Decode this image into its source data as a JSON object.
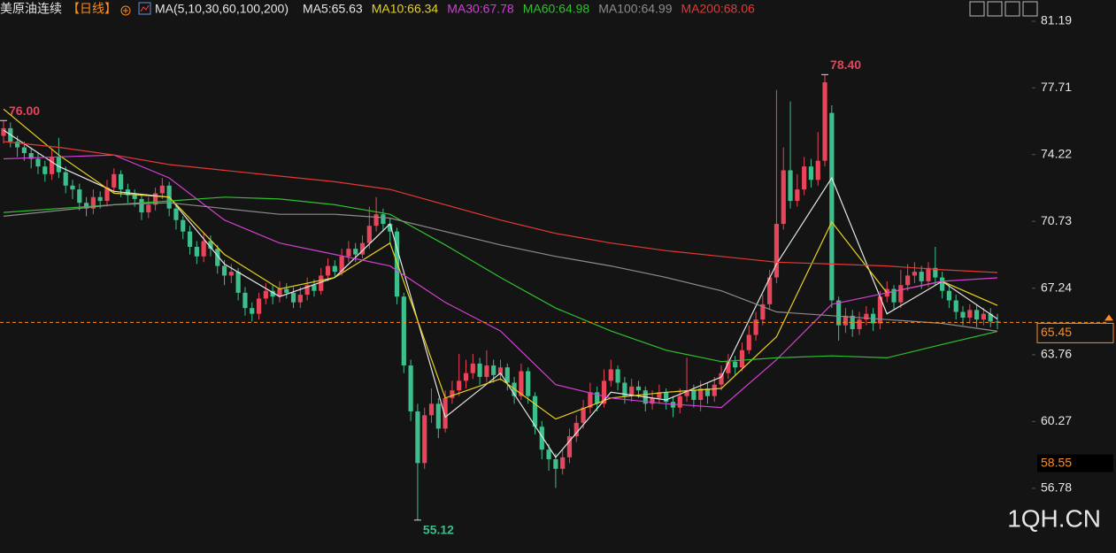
{
  "chart_data": {
    "type": "candlestick",
    "symbol": "美原油连续",
    "period": "【日线】",
    "indicator": "MA(5,10,30,60,100,200)",
    "watermark": "1QH.CN",
    "ylim": [
      53.4,
      82.3
    ],
    "yticks": [
      81.19,
      77.71,
      74.22,
      70.73,
      67.24,
      63.76,
      60.27,
      56.78
    ],
    "up_color": "#e8445a",
    "down_color": "#3cbf8c",
    "candles": {
      "open": [
        75.2,
        75.6,
        74.9,
        74.6,
        74.3,
        74.0,
        73.6,
        73.2,
        74.1,
        73.3,
        72.6,
        72.4,
        71.7,
        71.4,
        72.0,
        71.8,
        72.5,
        73.2,
        72.4,
        72.1,
        71.9,
        71.2,
        71.6,
        72.2,
        72.6,
        71.4,
        70.8,
        70.2,
        69.4,
        68.9,
        69.7,
        69.3,
        68.4,
        67.9,
        68.1,
        67.0,
        66.2,
        65.9,
        66.7,
        67.1,
        66.8,
        67.2,
        67.0,
        66.5,
        66.9,
        67.4,
        67.1,
        67.9,
        68.4,
        68.1,
        68.9,
        69.3,
        69.0,
        69.6,
        70.5,
        71.1,
        70.6,
        70.2,
        66.8,
        63.2,
        60.8,
        58.1,
        60.6,
        61.2,
        59.9,
        61.5,
        61.9,
        62.4,
        62.8,
        63.3,
        62.6,
        63.2,
        62.7,
        63.1,
        62.3,
        61.6,
        62.9,
        61.6,
        60.0,
        58.8,
        58.3,
        57.8,
        58.4,
        59.5,
        60.2,
        61.0,
        61.8,
        61.2,
        62.4,
        63.0,
        62.3,
        61.6,
        62.1,
        61.9,
        61.2,
        61.5,
        61.8,
        61.3,
        61.0,
        61.6,
        61.9,
        61.4,
        62.0,
        61.6,
        62.2,
        62.8,
        63.4,
        63.1,
        64.0,
        64.8,
        65.6,
        66.4,
        67.8,
        70.6,
        73.4,
        71.8,
        72.4,
        73.6,
        72.9,
        73.9,
        76.4,
        66.6,
        65.3,
        65.8,
        65.1,
        65.6,
        65.9,
        65.4,
        66.8,
        67.2,
        66.5,
        67.4,
        67.9,
        68.1,
        67.6,
        68.3,
        67.8,
        67.1,
        66.6,
        66.0,
        65.7,
        66.1,
        65.6,
        65.9,
        65.5
      ],
      "high": [
        76.0,
        75.9,
        75.2,
        74.9,
        74.6,
        74.3,
        73.9,
        74.5,
        75.1,
        73.6,
        72.9,
        72.7,
        72.0,
        72.4,
        72.3,
        72.9,
        73.5,
        73.4,
        72.7,
        72.4,
        72.1,
        72.0,
        72.5,
        73.0,
        72.8,
        71.6,
        71.0,
        70.5,
        69.7,
        70.1,
        70.0,
        69.5,
        68.7,
        68.5,
        68.3,
        67.3,
        66.5,
        67.0,
        67.5,
        67.4,
        67.6,
        67.5,
        67.3,
        67.3,
        67.8,
        67.7,
        68.3,
        68.8,
        68.7,
        69.3,
        69.7,
        69.6,
        70.0,
        71.5,
        72.0,
        71.4,
        70.9,
        70.4,
        67.0,
        63.5,
        61.2,
        61.0,
        62.0,
        61.5,
        61.9,
        62.4,
        63.8,
        63.5,
        63.8,
        63.6,
        64.0,
        63.5,
        63.5,
        63.3,
        62.6,
        63.3,
        63.1,
        61.8,
        60.3,
        59.1,
        58.6,
        58.8,
        59.9,
        60.6,
        61.4,
        62.3,
        62.1,
        63.0,
        63.5,
        63.2,
        62.6,
        62.5,
        62.4,
        62.1,
        61.9,
        62.2,
        62.0,
        61.6,
        62.0,
        63.6,
        62.2,
        62.4,
        62.3,
        62.6,
        63.2,
        63.8,
        63.7,
        64.4,
        65.3,
        66.0,
        66.9,
        68.2,
        77.6,
        74.6,
        77.0,
        73.2,
        74.1,
        74.0,
        75.4,
        78.4,
        76.8,
        66.8,
        66.2,
        66.1,
        66.0,
        66.3,
        66.2,
        67.1,
        67.6,
        67.4,
        68.2,
        68.5,
        68.6,
        68.4,
        68.6,
        69.4,
        68.1,
        67.4,
        66.9,
        66.3,
        66.4,
        66.4,
        66.2,
        66.2,
        65.9
      ],
      "low": [
        74.8,
        74.6,
        74.1,
        73.9,
        73.5,
        73.2,
        72.8,
        72.9,
        73.0,
        72.2,
        71.9,
        71.3,
        71.0,
        71.1,
        71.4,
        71.5,
        72.2,
        72.0,
        71.7,
        71.5,
        70.8,
        70.9,
        71.3,
        71.9,
        71.0,
        70.3,
        69.8,
        69.0,
        68.5,
        68.6,
        68.9,
        68.0,
        67.4,
        67.5,
        66.6,
        65.8,
        65.5,
        65.6,
        66.4,
        66.4,
        66.5,
        66.7,
        66.2,
        66.2,
        66.6,
        66.8,
        66.9,
        67.6,
        67.8,
        67.9,
        68.6,
        68.6,
        68.8,
        69.3,
        70.2,
        70.2,
        69.6,
        66.4,
        62.8,
        60.3,
        55.12,
        57.8,
        60.2,
        59.4,
        59.7,
        61.2,
        61.6,
        62.0,
        62.5,
        62.2,
        62.3,
        62.3,
        62.4,
        61.9,
        61.2,
        61.4,
        61.2,
        59.6,
        58.3,
        57.7,
        56.8,
        57.5,
        58.1,
        59.2,
        59.9,
        60.7,
        60.8,
        61.0,
        62.1,
        61.9,
        61.2,
        61.3,
        61.5,
        60.8,
        60.9,
        61.2,
        60.9,
        60.5,
        60.7,
        61.3,
        61.0,
        60.8,
        61.2,
        61.3,
        61.9,
        62.5,
        62.7,
        62.9,
        63.8,
        64.5,
        65.3,
        66.1,
        67.5,
        70.3,
        71.4,
        71.5,
        72.1,
        72.5,
        72.6,
        73.6,
        66.2,
        64.5,
        64.9,
        64.7,
        64.8,
        65.3,
        65.0,
        65.1,
        66.5,
        66.1,
        66.2,
        67.1,
        67.5,
        67.2,
        67.3,
        67.4,
        66.7,
        66.2,
        65.6,
        65.3,
        65.4,
        65.2,
        65.3,
        65.2,
        65.1
      ],
      "close": [
        75.6,
        74.9,
        74.6,
        74.3,
        74.0,
        73.6,
        73.2,
        74.1,
        73.3,
        72.6,
        72.4,
        71.7,
        71.4,
        72.0,
        71.8,
        72.5,
        73.2,
        72.4,
        72.1,
        71.9,
        71.2,
        71.6,
        72.2,
        72.6,
        71.4,
        70.8,
        70.2,
        69.4,
        68.9,
        69.7,
        69.3,
        68.4,
        67.9,
        68.1,
        67.0,
        66.2,
        65.9,
        66.7,
        67.1,
        66.8,
        67.2,
        67.0,
        66.5,
        66.9,
        67.4,
        67.1,
        67.9,
        68.4,
        68.1,
        68.9,
        69.3,
        69.0,
        69.6,
        70.5,
        71.1,
        70.6,
        70.2,
        66.8,
        63.2,
        60.8,
        58.1,
        60.6,
        61.2,
        59.9,
        61.5,
        61.9,
        62.4,
        62.8,
        63.3,
        62.6,
        63.2,
        62.7,
        63.1,
        62.3,
        61.6,
        62.9,
        61.6,
        60.0,
        58.8,
        58.3,
        57.8,
        58.4,
        59.5,
        60.2,
        61.0,
        61.8,
        61.2,
        62.4,
        63.0,
        62.3,
        61.6,
        62.1,
        61.9,
        61.2,
        61.5,
        61.8,
        61.3,
        61.0,
        61.6,
        61.9,
        61.4,
        62.0,
        61.6,
        62.2,
        62.8,
        63.4,
        63.1,
        64.0,
        64.8,
        65.6,
        66.4,
        67.8,
        70.6,
        73.4,
        71.8,
        72.4,
        73.6,
        72.9,
        73.9,
        78.0,
        66.6,
        65.3,
        65.8,
        65.1,
        65.6,
        65.9,
        65.4,
        66.8,
        67.2,
        66.5,
        67.4,
        67.9,
        68.1,
        67.6,
        68.3,
        67.8,
        67.1,
        66.6,
        66.0,
        65.7,
        66.1,
        65.6,
        65.9,
        65.5,
        65.45
      ]
    },
    "ma_series": [
      {
        "name": "MA5:65.63",
        "color": "#e6e6e6",
        "x": [
          0,
          8,
          16,
          24,
          32,
          40,
          48,
          56,
          64,
          72,
          80,
          88,
          96,
          104,
          112,
          120,
          128,
          136,
          144
        ],
        "values": [
          75.5,
          73.6,
          72.3,
          72.0,
          68.5,
          66.8,
          67.8,
          70.6,
          60.5,
          62.8,
          58.4,
          61.8,
          61.4,
          62.6,
          68.5,
          73.0,
          65.9,
          67.6,
          65.63
        ]
      },
      {
        "name": "MA10:66.34",
        "color": "#e8d21d",
        "x": [
          0,
          8,
          16,
          24,
          32,
          40,
          48,
          56,
          64,
          72,
          80,
          88,
          96,
          104,
          112,
          120,
          128,
          136,
          144
        ],
        "values": [
          76.6,
          74.2,
          72.2,
          72.0,
          69.0,
          67.2,
          67.8,
          69.6,
          61.5,
          62.5,
          60.4,
          61.5,
          61.8,
          62.0,
          64.7,
          70.7,
          67.0,
          67.6,
          66.34
        ]
      },
      {
        "name": "MA30:67.78",
        "color": "#d43fd6",
        "x": [
          0,
          8,
          16,
          24,
          32,
          40,
          48,
          56,
          64,
          72,
          80,
          88,
          96,
          104,
          112,
          120,
          128,
          136,
          144
        ],
        "values": [
          74.0,
          74.1,
          74.2,
          73.0,
          70.8,
          69.6,
          69.0,
          68.4,
          66.5,
          65.0,
          62.2,
          61.5,
          61.2,
          61.0,
          63.5,
          66.4,
          67.0,
          67.6,
          67.78
        ]
      },
      {
        "name": "MA60:64.98",
        "color": "#2fc12f",
        "x": [
          0,
          8,
          16,
          24,
          32,
          40,
          48,
          56,
          64,
          72,
          80,
          88,
          96,
          104,
          112,
          120,
          128,
          136,
          144
        ],
        "values": [
          71.2,
          71.4,
          71.6,
          71.8,
          72.0,
          71.9,
          71.6,
          71.1,
          69.5,
          67.8,
          66.2,
          65.0,
          64.0,
          63.4,
          63.6,
          63.7,
          63.6,
          64.3,
          64.98
        ]
      },
      {
        "name": "MA100:64.99",
        "color": "#8c8c8c",
        "x": [
          0,
          8,
          16,
          24,
          32,
          40,
          48,
          56,
          64,
          72,
          80,
          88,
          96,
          104,
          112,
          120,
          128,
          136,
          144
        ],
        "values": [
          71.0,
          71.3,
          71.6,
          71.7,
          71.4,
          71.1,
          71.1,
          70.9,
          70.2,
          69.5,
          68.9,
          68.4,
          67.8,
          67.1,
          66.0,
          65.8,
          65.6,
          65.4,
          64.99
        ]
      },
      {
        "name": "MA200:68.06",
        "color": "#e53935",
        "x": [
          0,
          8,
          16,
          24,
          32,
          40,
          48,
          56,
          64,
          72,
          80,
          88,
          96,
          104,
          112,
          120,
          128,
          136,
          144
        ],
        "values": [
          74.9,
          74.6,
          74.2,
          73.7,
          73.4,
          73.1,
          72.8,
          72.4,
          71.6,
          70.8,
          70.1,
          69.6,
          69.2,
          68.9,
          68.6,
          68.5,
          68.4,
          68.2,
          68.06
        ]
      }
    ],
    "annotations": [
      {
        "value": 76,
        "label": "76.00",
        "at": "high",
        "color": "#e8445a"
      },
      {
        "value": 78.4,
        "label": "78.40",
        "at": "high",
        "color": "#e8445a"
      },
      {
        "value": 55.12,
        "label": "55.12",
        "at": "low",
        "color": "#3cbf8c"
      }
    ],
    "current_price": 65.45,
    "crosshair_price": 58.55
  }
}
